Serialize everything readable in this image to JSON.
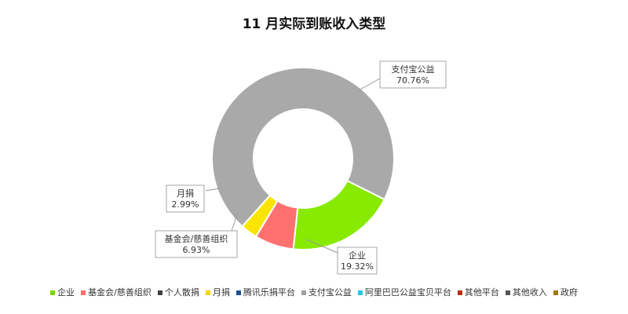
{
  "chart_data": {
    "type": "pie",
    "title": "11 月实际到账收入类型",
    "donut": true,
    "legend_position": "bottom",
    "slices": [
      {
        "label": "企业",
        "value": 19.32,
        "value_text": "19.32%",
        "color": "#88ea00"
      },
      {
        "label": "基金会/慈善组织",
        "value": 6.93,
        "value_text": "6.93%",
        "color": "#ff7070"
      },
      {
        "label": "月捐",
        "value": 2.99,
        "value_text": "2.99%",
        "color": "#fbe400"
      },
      {
        "label": "支付宝公益",
        "value": 70.76,
        "value_text": "70.76%",
        "color": "#a9a9a9"
      }
    ],
    "legend": [
      {
        "label": "企业",
        "color": "#7dd600"
      },
      {
        "label": "基金会/慈善组织",
        "color": "#ff6b6b"
      },
      {
        "label": "个人散捐",
        "color": "#404040"
      },
      {
        "label": "月捐",
        "color": "#f5d800"
      },
      {
        "label": "腾讯乐捐平台",
        "color": "#1f4e99"
      },
      {
        "label": "支付宝公益",
        "color": "#a0a0a0"
      },
      {
        "label": "阿里巴巴公益宝贝平台",
        "color": "#22c9e0"
      },
      {
        "label": "其他平台",
        "color": "#b83010"
      },
      {
        "label": "其他收入",
        "color": "#555555"
      },
      {
        "label": "政府",
        "color": "#a0780a"
      }
    ]
  }
}
